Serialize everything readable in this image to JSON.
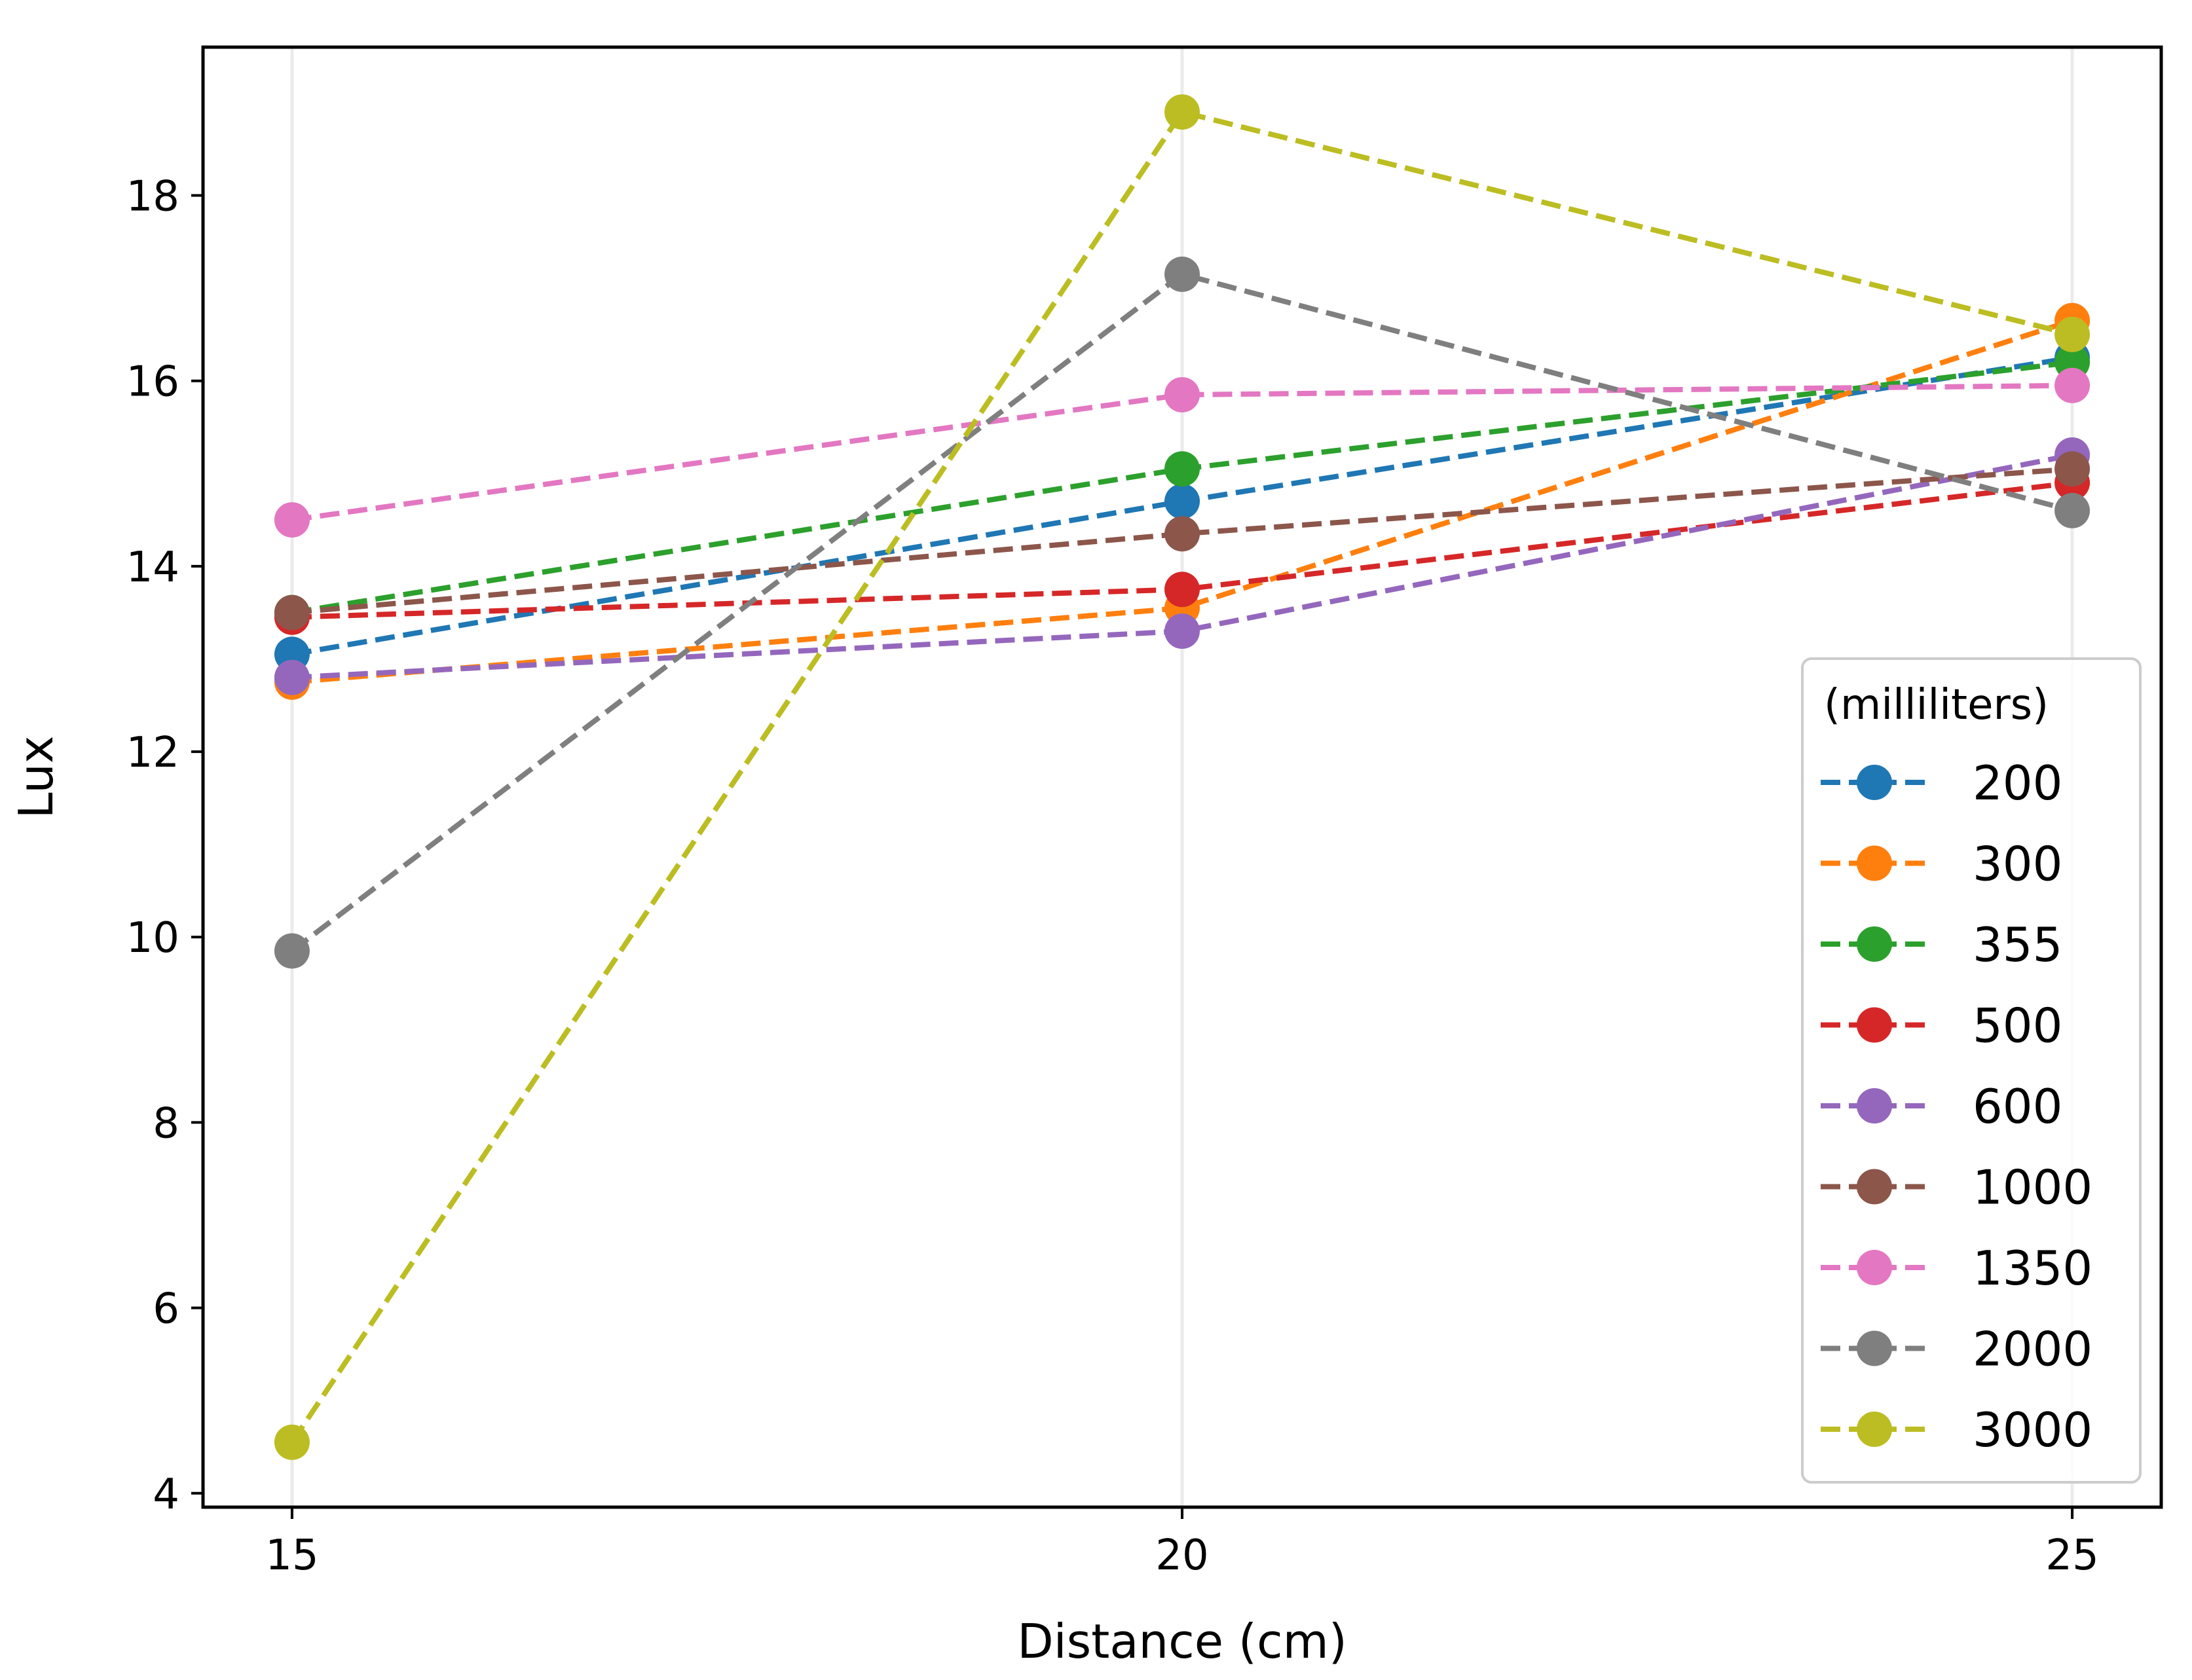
{
  "chart_data": {
    "type": "line",
    "title": "",
    "xlabel": "Distance (cm)",
    "ylabel": "Lux",
    "x": [
      15,
      20,
      25
    ],
    "x_ticks": [
      15,
      20,
      25
    ],
    "y_ticks": [
      4,
      6,
      8,
      10,
      12,
      14,
      16,
      18
    ],
    "xlim": [
      14.5,
      25.5
    ],
    "ylim": [
      3.85,
      19.6
    ],
    "grid": "vertical-x",
    "line_style": "dashed",
    "marker": "circle",
    "legend": {
      "title": "(milliliters)",
      "placement": "lower-right"
    },
    "series": [
      {
        "name": "200",
        "color": "#1f77b4",
        "values": [
          13.05,
          14.7,
          16.25
        ]
      },
      {
        "name": "300",
        "color": "#ff7f0e",
        "values": [
          12.75,
          13.55,
          16.65
        ]
      },
      {
        "name": "355",
        "color": "#2ca02c",
        "values": [
          13.5,
          15.05,
          16.2
        ]
      },
      {
        "name": "500",
        "color": "#d62728",
        "values": [
          13.45,
          13.75,
          14.9
        ]
      },
      {
        "name": "600",
        "color": "#9467bd",
        "values": [
          12.8,
          13.3,
          15.2
        ]
      },
      {
        "name": "1000",
        "color": "#8c564b",
        "values": [
          13.5,
          14.35,
          15.05
        ]
      },
      {
        "name": "1350",
        "color": "#e377c2",
        "values": [
          14.5,
          15.85,
          15.95
        ]
      },
      {
        "name": "2000",
        "color": "#7f7f7f",
        "values": [
          9.85,
          17.15,
          14.6
        ]
      },
      {
        "name": "3000",
        "color": "#bcbd22",
        "values": [
          4.55,
          18.9,
          16.5
        ]
      }
    ]
  }
}
